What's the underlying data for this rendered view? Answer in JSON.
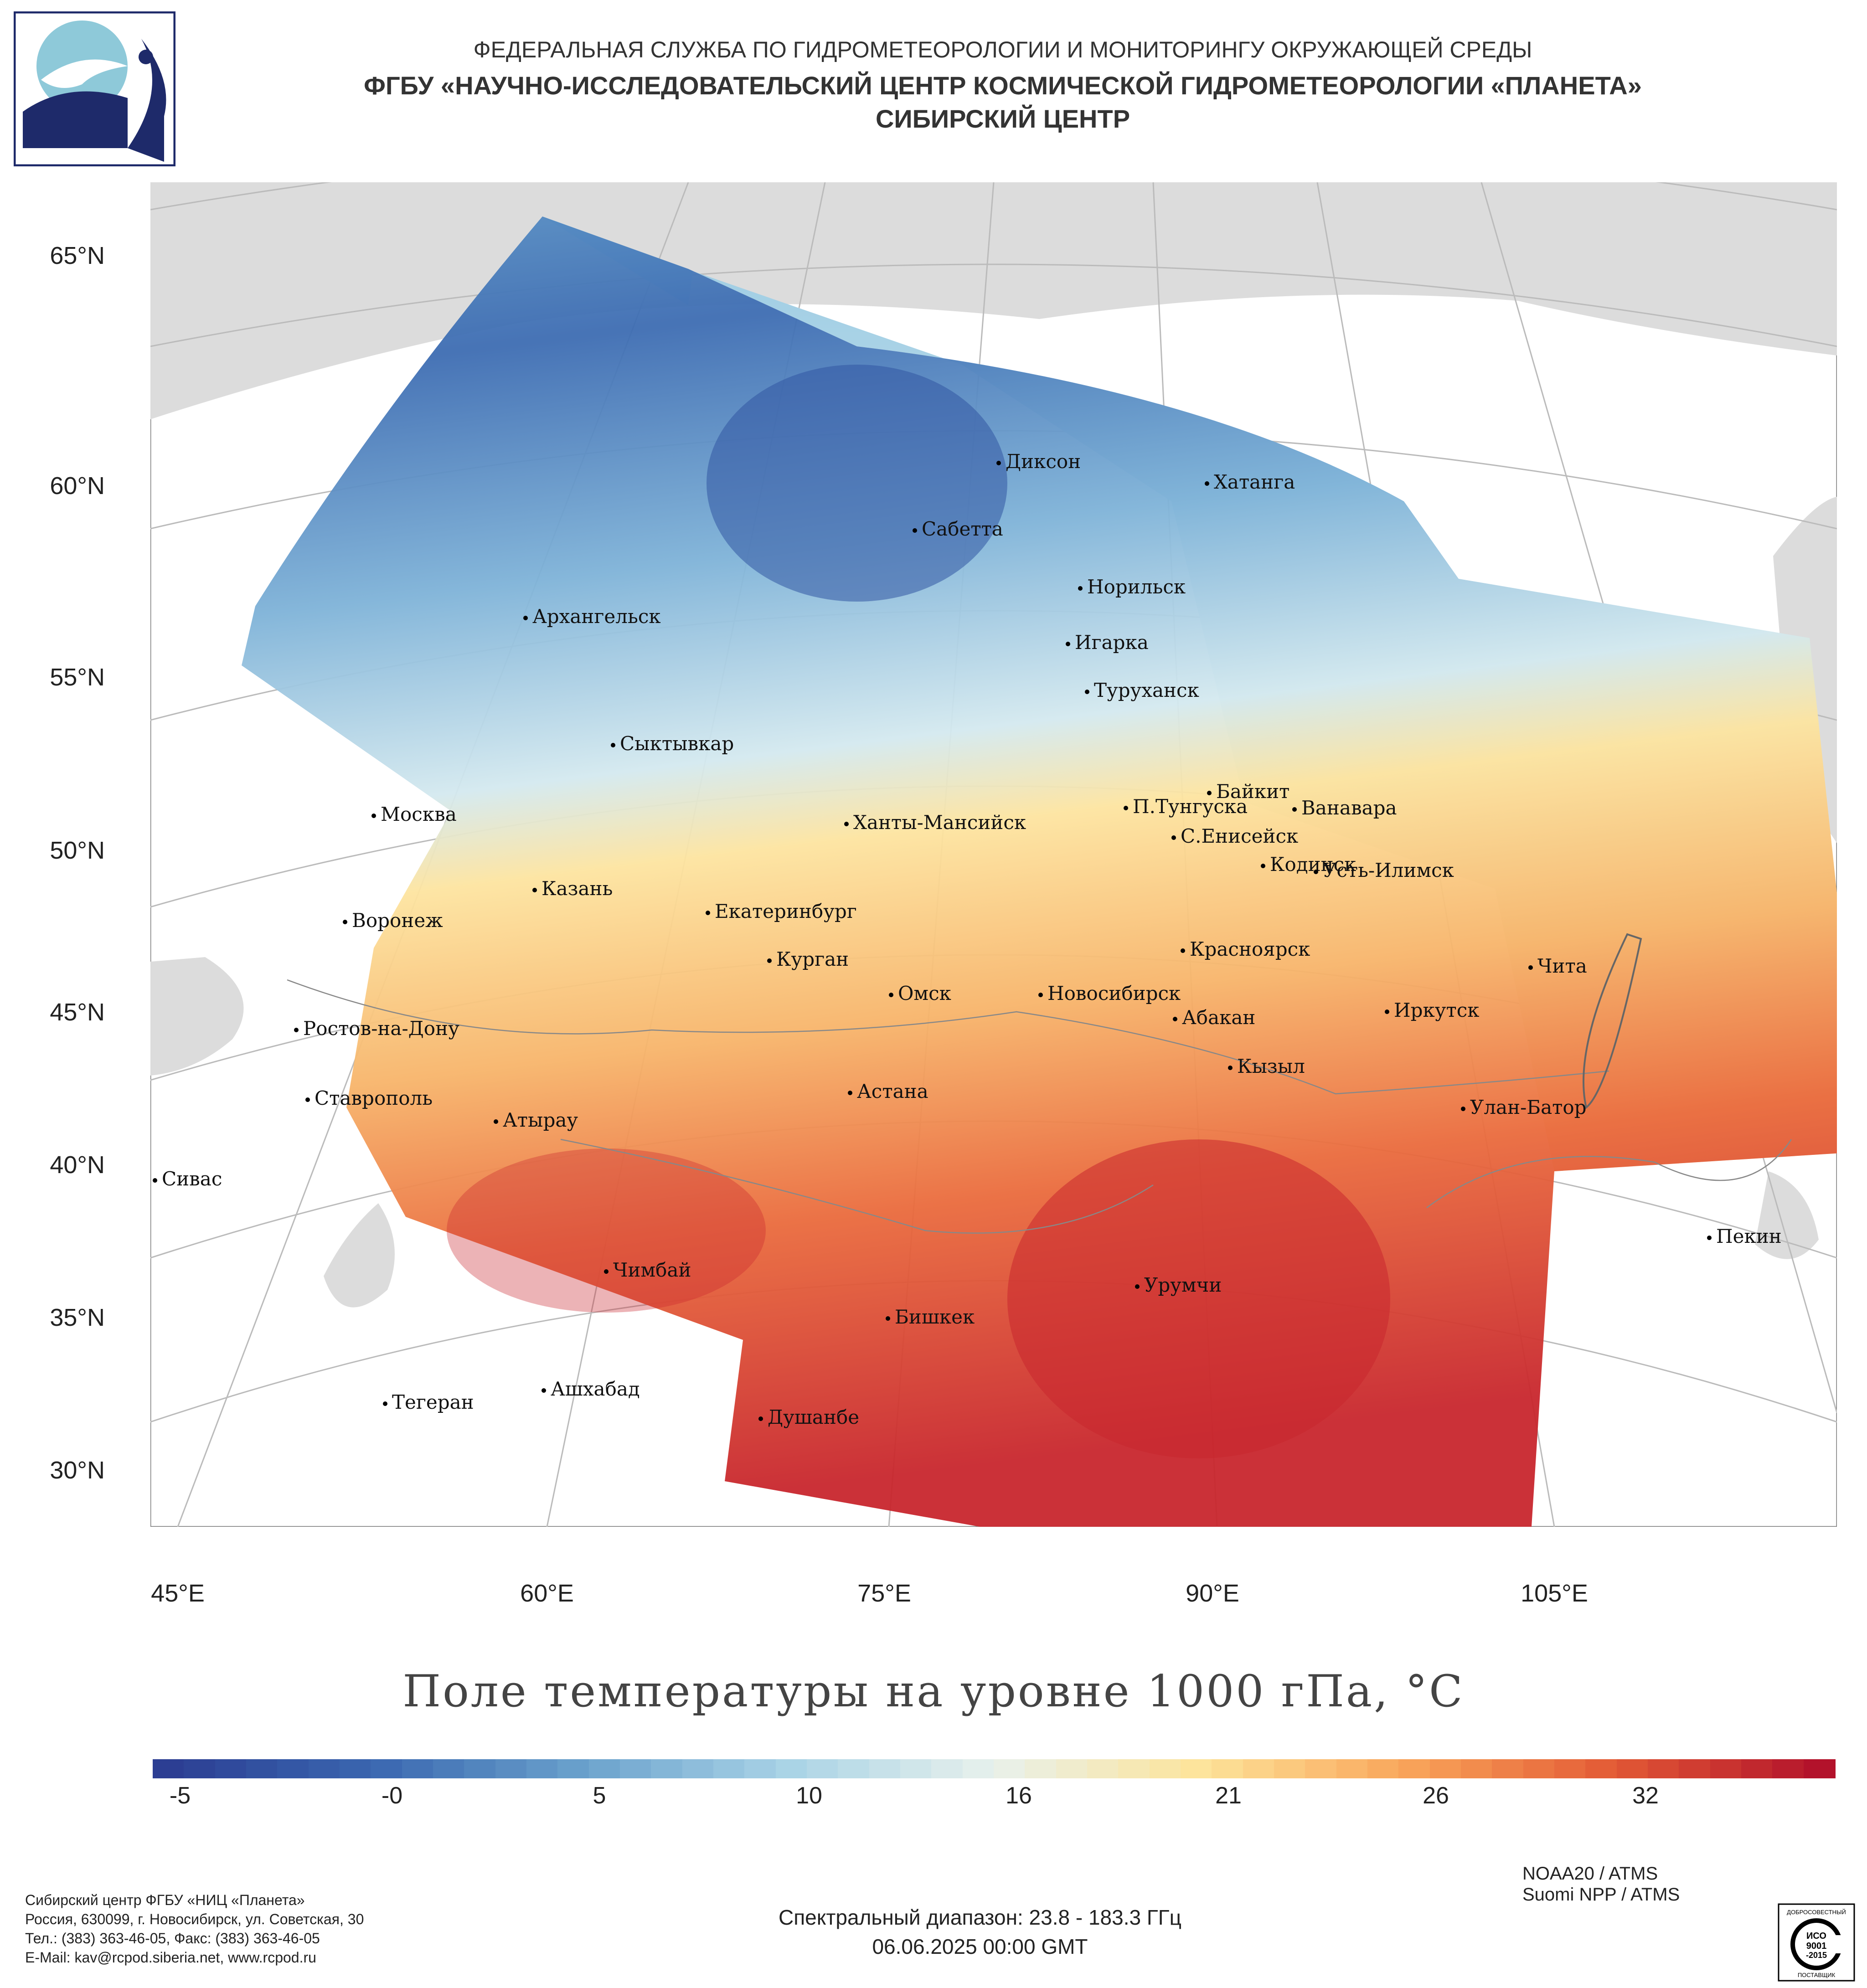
{
  "header": {
    "line1": "ФЕДЕРАЛЬНАЯ СЛУЖБА ПО ГИДРОМЕТЕОРОЛОГИИ И МОНИТОРИНГУ ОКРУЖАЮЩЕЙ СРЕДЫ",
    "line2": "ФГБУ «НАУЧНО-ИССЛЕДОВАТЕЛЬСКИЙ ЦЕНТР КОСМИЧЕСКОЙ ГИДРОМЕТЕОРОЛОГИИ «ПЛАНЕТА»",
    "line3": "СИБИРСКИЙ ЦЕНТР"
  },
  "map": {
    "lat_labels": [
      "65°N",
      "60°N",
      "55°N",
      "50°N",
      "45°N",
      "40°N",
      "35°N",
      "30°N"
    ],
    "lon_labels": [
      "45°E",
      "60°E",
      "75°E",
      "90°E",
      "105°E"
    ],
    "cities": [
      "Диксон",
      "Хатанга",
      "Сабетта",
      "Норильск",
      "Игарка",
      "Туруханск",
      "Архангельск",
      "Сыктывкар",
      "Москва",
      "Байкит",
      "П.Тунгуска",
      "Ванавара",
      "С.Енисейск",
      "Ханты-Мансийск",
      "Кодинск",
      "Усть-Илимск",
      "Казань",
      "Екатеринбург",
      "Воронеж",
      "Курган",
      "Красноярск",
      "Чита",
      "Омск",
      "Новосибирск",
      "Иркутск",
      "Ростов-на-Дону",
      "Абакан",
      "Кызыл",
      "Астана",
      "Ставрополь",
      "Улан-Батор",
      "Атырау",
      "Сивас",
      "Пекин",
      "Чимбай",
      "Урумчи",
      "Бишкек",
      "Ашхабад",
      "Тегеран",
      "Душанбе"
    ]
  },
  "title": "Поле температуры на уровне 1000 гПа, °C",
  "legend": {
    "ticks": [
      "-5",
      "-0",
      "5",
      "10",
      "16",
      "21",
      "26",
      "32"
    ],
    "colors": [
      "#2c3e93",
      "#3a67b0",
      "#6aa1cc",
      "#a9d3e6",
      "#e8f1ec",
      "#fde49a",
      "#f9a55a",
      "#e35a35",
      "#b3122b"
    ]
  },
  "footer": {
    "contact": [
      "Сибирский центр ФГБУ «НИЦ «Планета»",
      "Россия, 630099, г. Новосибирск, ул. Советская, 30",
      "Тел.: (383) 363-46-05, Факс: (383) 363-46-05",
      "E-Mail: kav@rcpod.siberia.net, www.rcpod.ru"
    ],
    "satellites": [
      "NOAA20 / ATMS",
      "Suomi NPP / ATMS"
    ],
    "spectral": "Спектральный диапазон: 23.8 - 183.3 ГГц",
    "datetime": "06.06.2025 00:00 GMT",
    "iso_badge": [
      "ДОБРОСОВЕСТНЫЙ",
      "ИСО",
      "9001",
      "-2015",
      "ПОСТАВЩИК"
    ]
  }
}
